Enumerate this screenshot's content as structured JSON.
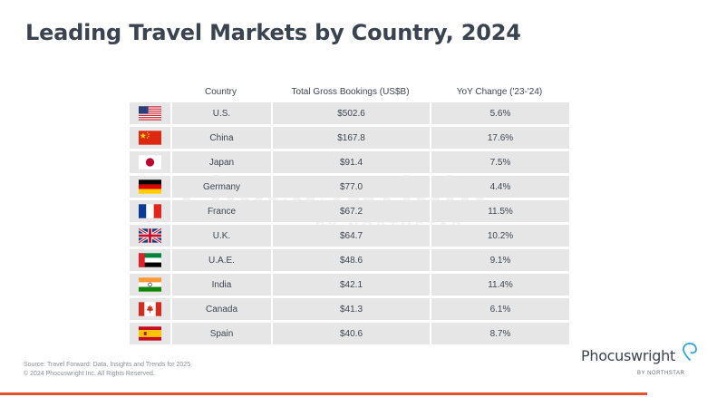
{
  "title": "Leading Travel Markets by Country, 2024",
  "table": {
    "headers": {
      "country": "Country",
      "bookings": "Total Gross Bookings (US$B)",
      "yoy": "YoY Change ('23-'24)"
    },
    "rows": [
      {
        "flag": "us-flag-icon",
        "country": "U.S.",
        "bookings": "$502.6",
        "yoy": "5.6%"
      },
      {
        "flag": "china-flag-icon",
        "country": "China",
        "bookings": "$167.8",
        "yoy": "17.6%"
      },
      {
        "flag": "japan-flag-icon",
        "country": "Japan",
        "bookings": "$91.4",
        "yoy": "7.5%"
      },
      {
        "flag": "germany-flag-icon",
        "country": "Germany",
        "bookings": "$77.0",
        "yoy": "4.4%"
      },
      {
        "flag": "france-flag-icon",
        "country": "France",
        "bookings": "$67.2",
        "yoy": "11.5%"
      },
      {
        "flag": "uk-flag-icon",
        "country": "U.K.",
        "bookings": "$64.7",
        "yoy": "10.2%"
      },
      {
        "flag": "uae-flag-icon",
        "country": "U.A.E.",
        "bookings": "$48.6",
        "yoy": "9.1%"
      },
      {
        "flag": "india-flag-icon",
        "country": "India",
        "bookings": "$42.1",
        "yoy": "11.4%"
      },
      {
        "flag": "canada-flag-icon",
        "country": "Canada",
        "bookings": "$41.3",
        "yoy": "6.1%"
      },
      {
        "flag": "spain-flag-icon",
        "country": "Spain",
        "bookings": "$40.6",
        "yoy": "8.7%"
      }
    ]
  },
  "watermark": {
    "main": "Phocuswright",
    "sub": "BY NORTHSTAR"
  },
  "source": {
    "line1": "Source: Travel Forward: Data, Insights and Trends for 2025",
    "line2": "© 2024 Phocuswright Inc. All Rights Reserved."
  },
  "logo": {
    "word": "Phocuswright",
    "sub": "BY NORTHSTAR"
  },
  "colors": {
    "title": "#3a4350",
    "row_background": "#e6e6e6",
    "accent_rule": "#e4512f",
    "logo_mark": "#2ca6de"
  }
}
